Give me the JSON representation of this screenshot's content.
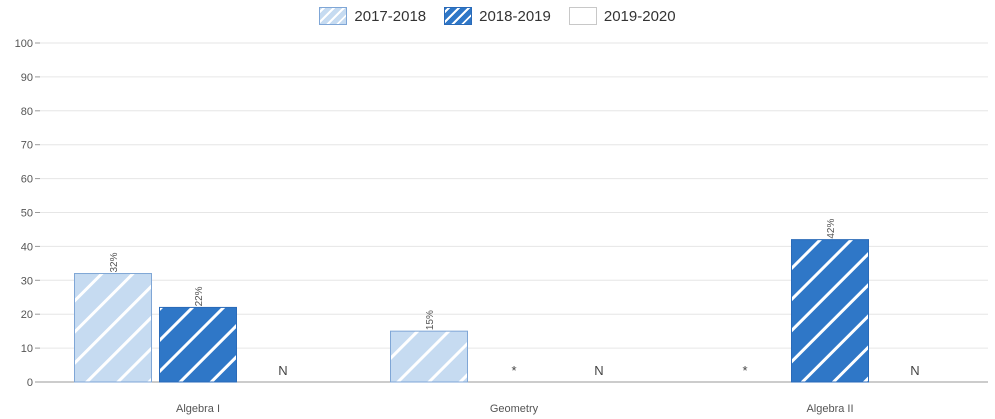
{
  "legend": {
    "items": [
      {
        "label": "2017-2018",
        "style": "light-hatch"
      },
      {
        "label": "2018-2019",
        "style": "dark-hatch"
      },
      {
        "label": "2019-2020",
        "style": "empty"
      }
    ]
  },
  "colors": {
    "light_fill": "#c6dbf1",
    "light_stroke": "#7fa6d6",
    "dark_fill": "#2f77c7",
    "dark_stroke": "#2a6ab8",
    "grid": "#e6e6e6",
    "axis": "#999999",
    "text": "#555555"
  },
  "chart_data": {
    "type": "bar",
    "categories": [
      "Algebra I",
      "Geometry",
      "Algebra II"
    ],
    "series": [
      {
        "name": "2017-2018",
        "values": [
          32,
          15,
          null
        ],
        "value_labels": [
          "32%",
          "15%",
          "*"
        ]
      },
      {
        "name": "2018-2019",
        "values": [
          22,
          null,
          42
        ],
        "value_labels": [
          "22%",
          "*",
          "42%"
        ]
      },
      {
        "name": "2019-2020",
        "values": [
          null,
          null,
          null
        ],
        "value_labels": [
          "N",
          "N",
          "N"
        ]
      }
    ],
    "ylim": [
      0,
      100
    ],
    "yticks": [
      0,
      10,
      20,
      30,
      40,
      50,
      60,
      70,
      80,
      90,
      100
    ],
    "grid": true,
    "legend_position": "top-center"
  }
}
